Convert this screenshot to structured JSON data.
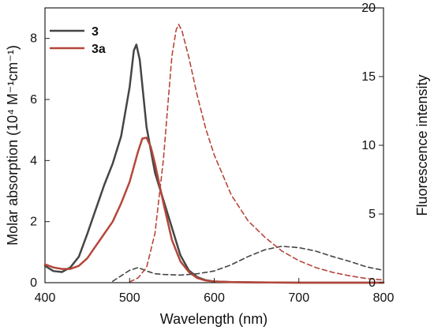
{
  "chart_data": {
    "type": "line",
    "title": "",
    "xlabel": "Wavelength (nm)",
    "ylabel": "Molar absorption (10⁴ M⁻¹cm⁻¹)",
    "y2label": "Fluorescence intensity",
    "xlim": [
      400,
      800
    ],
    "ylim": [
      0,
      9
    ],
    "y2lim": [
      0,
      20
    ],
    "xticks": [
      "400",
      "500",
      "600",
      "700",
      "800"
    ],
    "yticks": [
      "0",
      "2",
      "4",
      "6",
      "8"
    ],
    "y2ticks": [
      "0",
      "5",
      "10",
      "15",
      "20"
    ],
    "legend": {
      "position": "top-left",
      "items": [
        {
          "label": "3",
          "color": "#454545"
        },
        {
          "label": "3a",
          "color": "#b5473a"
        }
      ]
    },
    "series": [
      {
        "name": "3",
        "axis": "left",
        "style": "solid",
        "color": "#454545",
        "x": [
          400,
          410,
          420,
          430,
          440,
          450,
          460,
          470,
          480,
          490,
          500,
          505,
          508,
          512,
          520,
          530,
          540,
          550,
          560,
          570,
          580,
          590,
          600,
          620,
          650,
          700,
          800
        ],
        "y": [
          0.55,
          0.38,
          0.35,
          0.5,
          0.85,
          1.6,
          2.4,
          3.2,
          3.9,
          4.8,
          6.4,
          7.6,
          7.8,
          7.3,
          5.1,
          3.6,
          2.7,
          1.8,
          0.9,
          0.4,
          0.18,
          0.08,
          0.04,
          0.02,
          0.01,
          0.0,
          0.0
        ]
      },
      {
        "name": "3a",
        "axis": "left",
        "style": "solid",
        "color": "#b5473a",
        "x": [
          400,
          410,
          420,
          430,
          440,
          450,
          460,
          470,
          480,
          490,
          500,
          505,
          510,
          515,
          520,
          525,
          530,
          540,
          550,
          560,
          570,
          580,
          590,
          600,
          620,
          650,
          700,
          800
        ],
        "y": [
          0.6,
          0.5,
          0.45,
          0.45,
          0.55,
          0.8,
          1.2,
          1.6,
          2.0,
          2.6,
          3.3,
          3.8,
          4.3,
          4.72,
          4.75,
          4.45,
          3.9,
          2.6,
          1.4,
          0.7,
          0.35,
          0.15,
          0.07,
          0.04,
          0.02,
          0.01,
          0.0,
          0.0
        ]
      },
      {
        "name": "3 fluorescence",
        "axis": "right",
        "style": "dashed",
        "color": "#454545",
        "x": [
          480,
          490,
          500,
          510,
          520,
          530,
          540,
          560,
          580,
          600,
          620,
          640,
          660,
          680,
          700,
          720,
          740,
          760,
          780,
          800
        ],
        "y": [
          0.1,
          0.5,
          0.9,
          1.1,
          0.85,
          0.65,
          0.6,
          0.55,
          0.65,
          0.85,
          1.3,
          1.9,
          2.4,
          2.65,
          2.55,
          2.3,
          1.9,
          1.55,
          1.15,
          0.9
        ]
      },
      {
        "name": "3a fluorescence",
        "axis": "right",
        "style": "dashed",
        "color": "#b5473a",
        "x": [
          500,
          510,
          520,
          530,
          540,
          545,
          550,
          555,
          558,
          562,
          570,
          580,
          590,
          600,
          620,
          640,
          660,
          680,
          700,
          720,
          740,
          760,
          780,
          800
        ],
        "y": [
          0.05,
          0.35,
          1.1,
          3.6,
          9.0,
          12.8,
          16.5,
          18.4,
          18.8,
          18.3,
          16.4,
          13.6,
          11.2,
          9.3,
          6.4,
          4.5,
          3.3,
          2.3,
          1.6,
          1.1,
          0.75,
          0.5,
          0.3,
          0.2
        ]
      }
    ]
  }
}
